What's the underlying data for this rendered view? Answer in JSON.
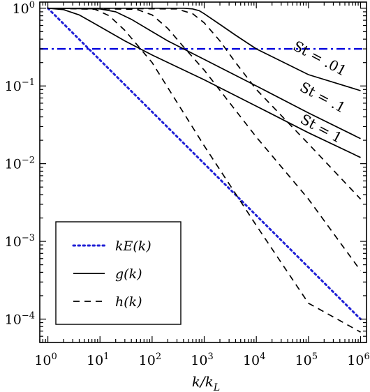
{
  "chart_data": {
    "type": "line",
    "xscale": "log",
    "yscale": "log",
    "xlim": [
      0.7,
      1300000
    ],
    "ylim": [
      5e-05,
      1.2
    ],
    "xlabel": "k/k",
    "xlabel_sub": "L",
    "grid": false,
    "legend_position": "bottom-left",
    "x_ticks": [
      {
        "base": "10",
        "exp": "0",
        "value": 1
      },
      {
        "base": "10",
        "exp": "1",
        "value": 10
      },
      {
        "base": "10",
        "exp": "2",
        "value": 100
      },
      {
        "base": "10",
        "exp": "3",
        "value": 1000
      },
      {
        "base": "10",
        "exp": "4",
        "value": 10000
      },
      {
        "base": "10",
        "exp": "5",
        "value": 100000
      },
      {
        "base": "10",
        "exp": "6",
        "value": 1000000
      }
    ],
    "y_ticks": [
      {
        "base": "10",
        "exp": "0",
        "value": 1
      },
      {
        "base": "10",
        "exp": "−1",
        "value": 0.1
      },
      {
        "base": "10",
        "exp": "−2",
        "value": 0.01
      },
      {
        "base": "10",
        "exp": "−3",
        "value": 0.001
      },
      {
        "base": "10",
        "exp": "−4",
        "value": 0.0001
      }
    ],
    "horizontal_line": {
      "y": 0.3,
      "color": "#0000dd",
      "style": "dash-dot"
    },
    "series": [
      {
        "kind": "kE",
        "color": "#1f1fd6",
        "style": "dotted",
        "x": [
          1,
          1000000
        ],
        "y": [
          1,
          0.0001
        ]
      },
      {
        "kind": "g",
        "color": "#000000",
        "style": "solid",
        "st": "0.01",
        "x": [
          1,
          400,
          600,
          800,
          1000,
          2000,
          4000,
          10000,
          100000,
          1000000
        ],
        "y": [
          1,
          1,
          0.98,
          0.93,
          0.85,
          0.62,
          0.45,
          0.3,
          0.14,
          0.087
        ]
      },
      {
        "kind": "g",
        "color": "#000000",
        "style": "solid",
        "st": "0.1",
        "x": [
          1,
          10,
          20,
          40,
          100,
          200,
          1000,
          10000,
          100000,
          1000000
        ],
        "y": [
          1,
          0.98,
          0.9,
          0.72,
          0.5,
          0.38,
          0.22,
          0.1,
          0.045,
          0.021
        ]
      },
      {
        "kind": "g",
        "color": "#000000",
        "style": "solid",
        "st": "1",
        "x": [
          1,
          2,
          4,
          10,
          30,
          100,
          1000,
          10000,
          100000,
          1000000
        ],
        "y": [
          1,
          0.96,
          0.82,
          0.58,
          0.38,
          0.25,
          0.12,
          0.055,
          0.025,
          0.012
        ]
      },
      {
        "kind": "h",
        "color": "#000000",
        "style": "dashed",
        "x": [
          1,
          300,
          600,
          1000,
          2000,
          4000,
          10000,
          100000,
          1000000
        ],
        "y": [
          1,
          0.98,
          0.85,
          0.65,
          0.38,
          0.2,
          0.09,
          0.018,
          0.0035
        ]
      },
      {
        "kind": "h",
        "color": "#000000",
        "style": "dashed",
        "x": [
          1,
          50,
          100,
          200,
          400,
          1000,
          10000,
          100000,
          1000000
        ],
        "y": [
          1,
          0.97,
          0.82,
          0.55,
          0.32,
          0.16,
          0.022,
          0.0035,
          0.00042
        ]
      },
      {
        "kind": "h",
        "color": "#000000",
        "style": "dashed",
        "x": [
          1,
          8,
          15,
          30,
          60,
          100,
          1000,
          10000,
          100000,
          1000000
        ],
        "y": [
          1,
          0.97,
          0.8,
          0.52,
          0.3,
          0.2,
          0.017,
          0.0016,
          0.00016,
          6.8e-05
        ]
      }
    ],
    "annotations": [
      {
        "label": "St = .01",
        "x": 150000,
        "y": 0.2
      },
      {
        "label": "St = .1",
        "x": 170000,
        "y": 0.063
      },
      {
        "label": "St = 1",
        "x": 160000,
        "y": 0.025
      }
    ],
    "legend": [
      {
        "label": "kE(k)",
        "style": "dotted",
        "color": "#1f1fd6"
      },
      {
        "label": "g(k)",
        "style": "solid",
        "color": "#000000"
      },
      {
        "label": "h(k)",
        "style": "dashed",
        "color": "#000000"
      }
    ]
  }
}
